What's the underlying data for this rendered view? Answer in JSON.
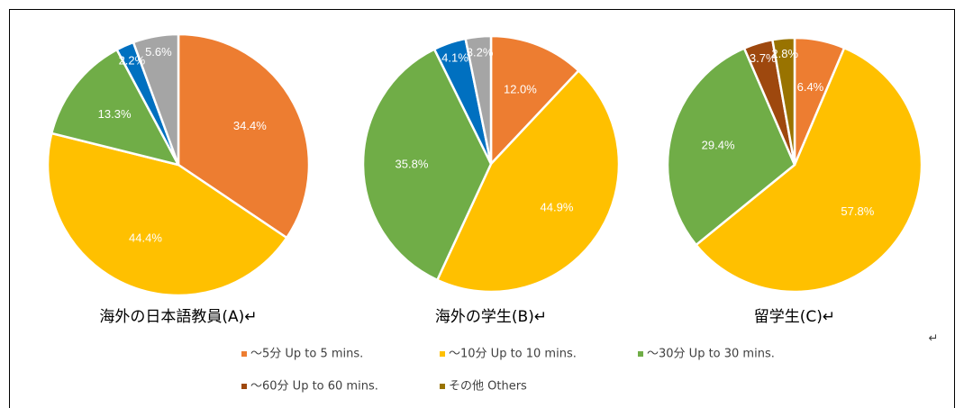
{
  "chart_data": [
    {
      "type": "pie",
      "title": "海外の日本語教員(A)↵",
      "values": [
        34.4,
        44.4,
        13.3,
        2.2,
        5.6
      ],
      "value_labels": [
        "34.4%",
        "44.4%",
        "13.3%",
        "2.2%",
        "5.6%"
      ],
      "colors": [
        "#ED7D31",
        "#FFC000",
        "#70AD47",
        "#0070C0",
        "#A5A5A5"
      ]
    },
    {
      "type": "pie",
      "title": "海外の学生(B)↵",
      "values": [
        12.0,
        44.9,
        35.8,
        4.1,
        3.2
      ],
      "value_labels": [
        "12.0%",
        "44.9%",
        "35.8%",
        "4.1%",
        "3.2%"
      ],
      "colors": [
        "#ED7D31",
        "#FFC000",
        "#70AD47",
        "#0070C0",
        "#A5A5A5"
      ]
    },
    {
      "type": "pie",
      "title": "留学生(C)↵",
      "values": [
        6.4,
        57.8,
        29.4,
        3.7,
        2.8
      ],
      "value_labels": [
        "6.4%",
        "57.8%",
        "29.4%",
        "3.7%",
        "2.8%"
      ],
      "colors": [
        "#ED7D31",
        "#FFC000",
        "#70AD47",
        "#9E480E",
        "#997300"
      ]
    }
  ],
  "legend": [
    {
      "label": "～5分  Up to 5 mins.",
      "color": "#ED7D31"
    },
    {
      "label": "～10分 Up to 10 mins.",
      "color": "#FFC000"
    },
    {
      "label": "～30分 Up to 30 mins.",
      "color": "#70AD47"
    },
    {
      "label": "～60分 Up to 60 mins.",
      "color": "#9E480E"
    },
    {
      "label": "その他 Others",
      "color": "#997300"
    }
  ],
  "paragraph_mark": "↵"
}
